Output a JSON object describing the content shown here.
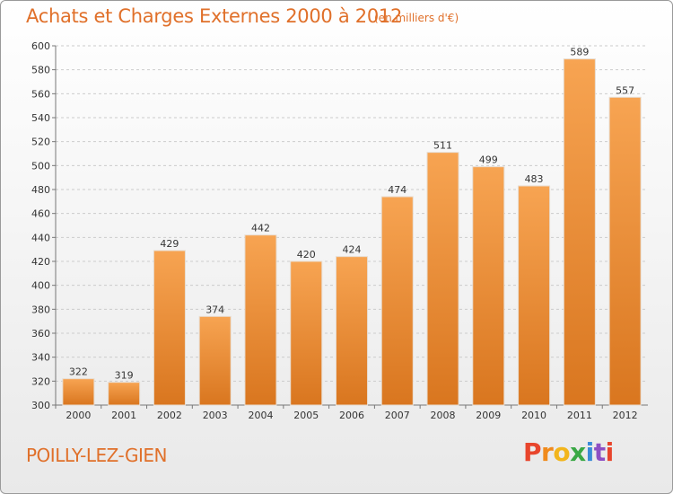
{
  "header": {
    "title": "Achats et Charges Externes 2000 à 2012",
    "subtitle": "(en milliers d'€)"
  },
  "footer": {
    "commune": "POILLY-LEZ-GIEN",
    "logo_letters": [
      "P",
      "r",
      "o",
      "x",
      "i",
      "t",
      "i"
    ],
    "logo_colors": [
      "#e8452c",
      "#f08a1c",
      "#f2b51c",
      "#3aa845",
      "#3a8bd8",
      "#8d4fc4",
      "#e8452c"
    ]
  },
  "colors": {
    "bar_top": "#f7a452",
    "bar_bottom": "#d9761f",
    "grid": "#cccccc",
    "accent": "#e0702a"
  },
  "chart_data": {
    "type": "bar",
    "title": "Achats et Charges Externes 2000 à 2012",
    "subtitle": "(en milliers d'€)",
    "categories": [
      "2000",
      "2001",
      "2002",
      "2003",
      "2004",
      "2005",
      "2006",
      "2007",
      "2008",
      "2009",
      "2010",
      "2011",
      "2012"
    ],
    "values": [
      322,
      319,
      429,
      374,
      442,
      420,
      424,
      474,
      511,
      499,
      483,
      589,
      557
    ],
    "ylim": [
      300,
      600
    ],
    "yticks": [
      300,
      320,
      340,
      360,
      380,
      400,
      420,
      440,
      460,
      480,
      500,
      520,
      540,
      560,
      580,
      600
    ],
    "grid": true,
    "legend": "none",
    "xlabel": "",
    "ylabel": ""
  }
}
